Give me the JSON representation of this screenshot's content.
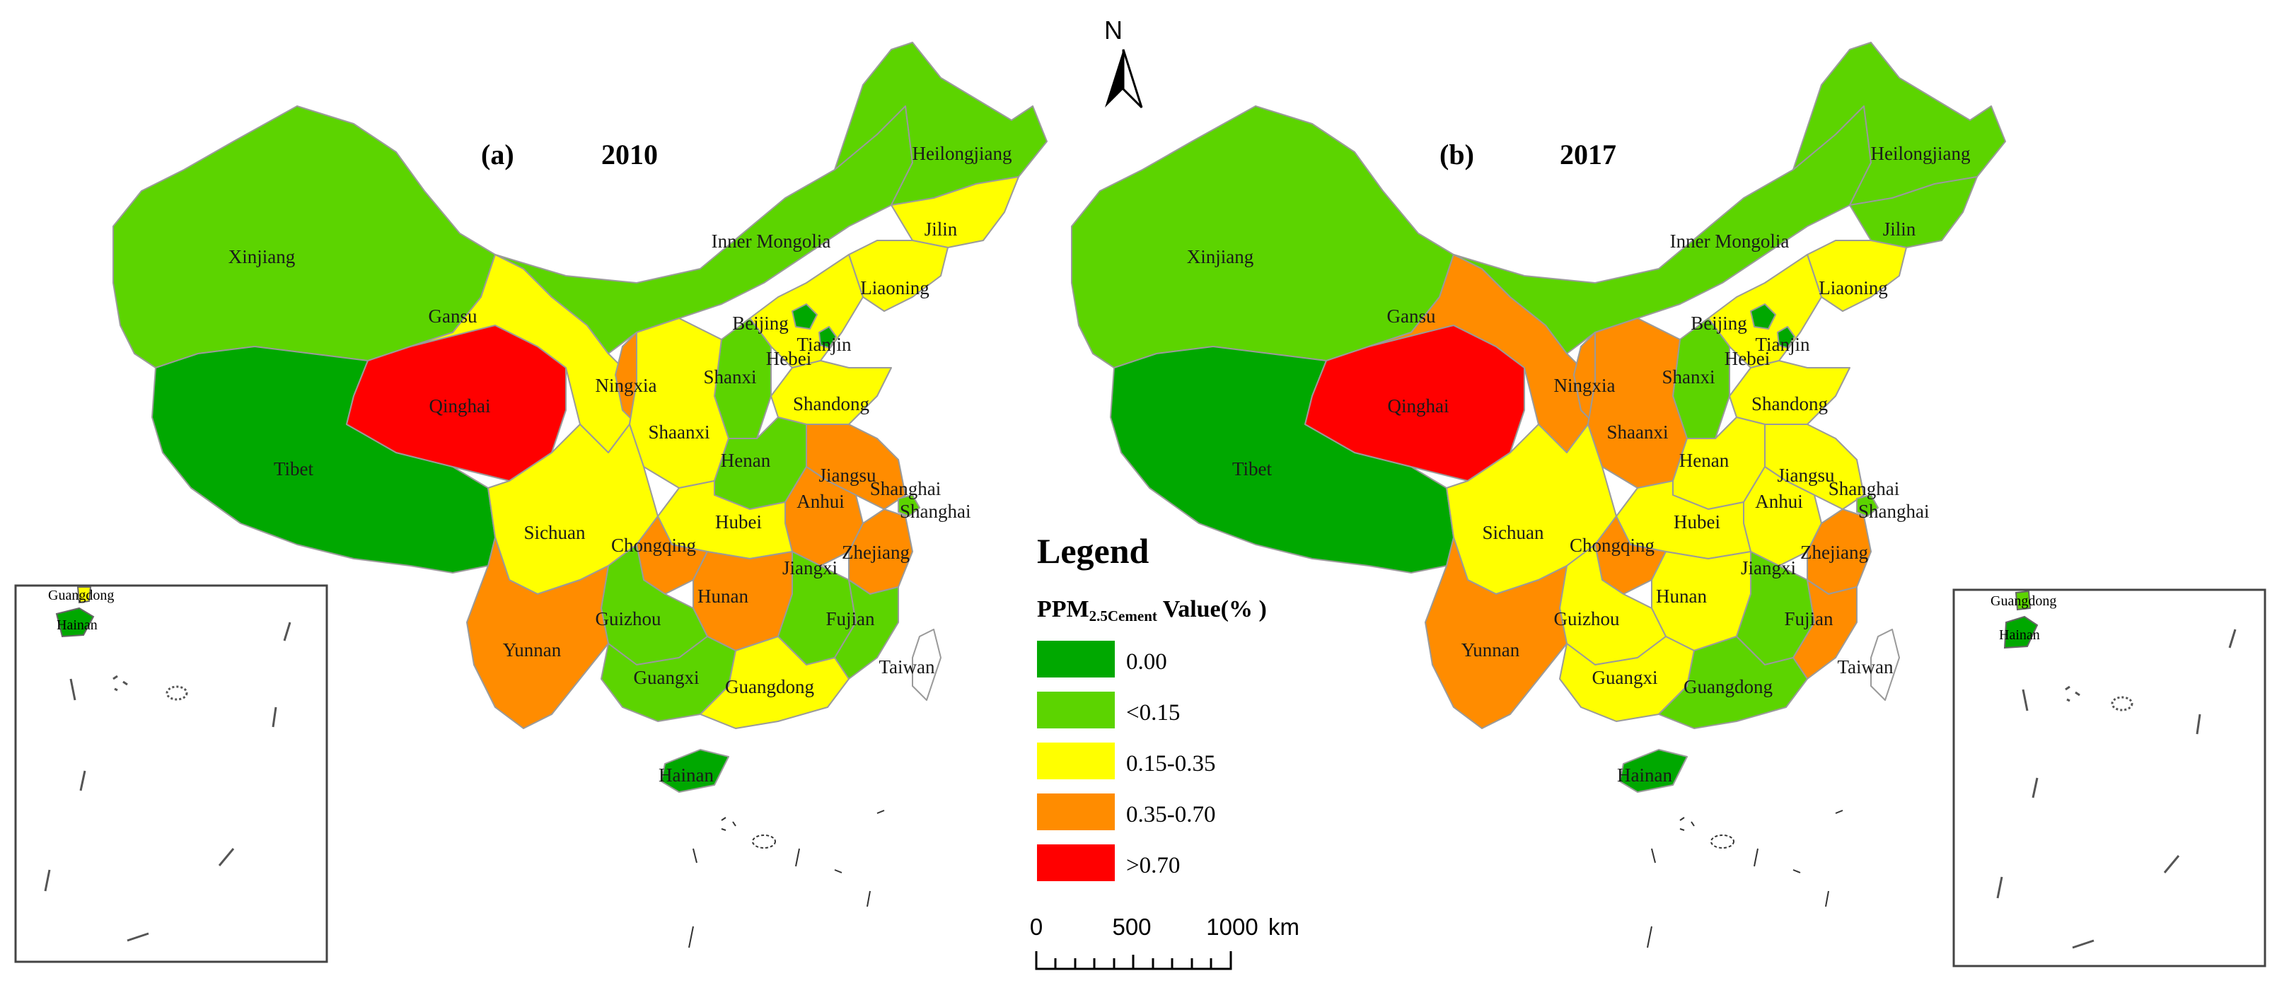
{
  "north_label": "N",
  "legend": {
    "title": "Legend",
    "subtitle_prefix": "PPM",
    "subtitle_sub": "2.5Cement",
    "subtitle_suffix": " Value(% )",
    "classes": [
      {
        "label": "0.00",
        "color": "#00a800"
      },
      {
        "label": "<0.15",
        "color": "#5cd400"
      },
      {
        "label": "0.15-0.35",
        "color": "#ffff00"
      },
      {
        "label": "0.35-0.70",
        "color": "#ff8c00"
      },
      {
        "label": ">0.70",
        "color": "#ff0000"
      }
    ]
  },
  "scale_bar": {
    "ticks": [
      "0",
      "500",
      "1000"
    ],
    "unit": "km"
  },
  "panels": [
    {
      "tag": "(a)",
      "year": "2010",
      "provinces": {
        "Xinjiang": 1,
        "Tibet": 0,
        "Qinghai": 4,
        "Gansu": 2,
        "Inner Mongolia": 1,
        "Heilongjiang": 1,
        "Jilin": 2,
        "Liaoning": 2,
        "Beijing": 0,
        "Tianjin": 0,
        "Hebei": 2,
        "Shanxi": 1,
        "Shandong": 2,
        "Ningxia": 3,
        "Shaanxi": 2,
        "Henan": 1,
        "Jiangsu": 3,
        "Anhui": 3,
        "Shanghai": 1,
        "Hubei": 2,
        "Sichuan": 2,
        "Chongqing": 3,
        "Zhejiang": 3,
        "Hunan": 3,
        "Jiangxi": 1,
        "Guizhou": 1,
        "Yunnan": 3,
        "Guangxi": 1,
        "Guangdong": 2,
        "Fujian": 1,
        "Taiwan": -1,
        "Hainan": 0
      },
      "inset": {
        "Guangdong": "Guangdong",
        "Hainan": "Hainan"
      }
    },
    {
      "tag": "(b)",
      "year": "2017",
      "provinces": {
        "Xinjiang": 1,
        "Tibet": 0,
        "Qinghai": 4,
        "Gansu": 3,
        "Inner Mongolia": 1,
        "Heilongjiang": 1,
        "Jilin": 1,
        "Liaoning": 2,
        "Beijing": 0,
        "Tianjin": 0,
        "Hebei": 2,
        "Shanxi": 1,
        "Shandong": 2,
        "Ningxia": 3,
        "Shaanxi": 3,
        "Henan": 2,
        "Jiangsu": 2,
        "Anhui": 2,
        "Shanghai": 1,
        "Hubei": 2,
        "Sichuan": 2,
        "Chongqing": 3,
        "Zhejiang": 3,
        "Hunan": 2,
        "Jiangxi": 1,
        "Guizhou": 2,
        "Yunnan": 3,
        "Guangxi": 2,
        "Guangdong": 1,
        "Fujian": 3,
        "Taiwan": -1,
        "Hainan": 0
      },
      "inset": {
        "Guangdong": "Guangdong",
        "Hainan": "Hainan"
      }
    }
  ]
}
